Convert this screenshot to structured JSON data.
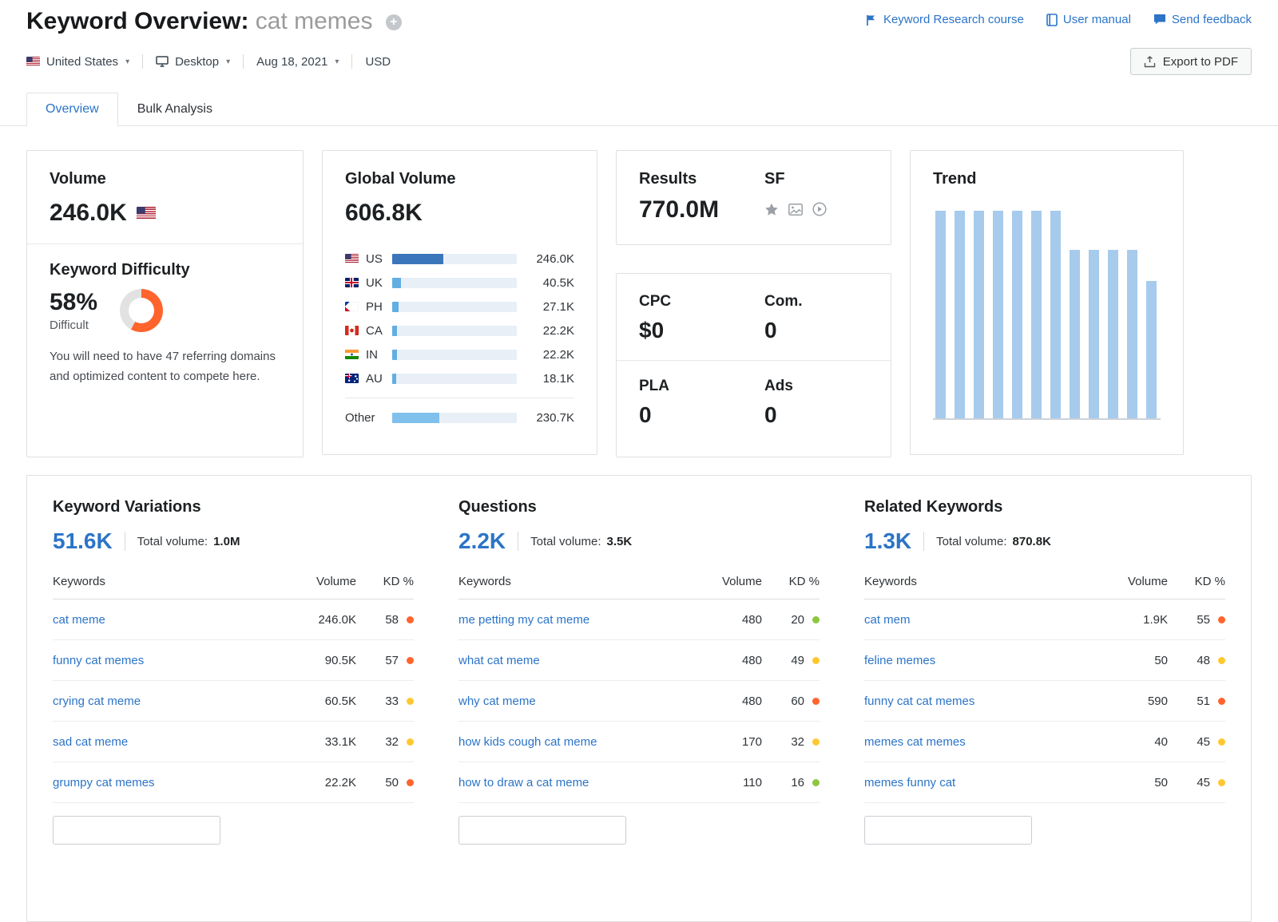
{
  "page_title": {
    "prefix": "Keyword Overview:",
    "keyword": "cat memes"
  },
  "header_links": {
    "course": "Keyword Research course",
    "manual": "User manual",
    "feedback": "Send feedback"
  },
  "export_button": "Export to PDF",
  "filters": {
    "country": "United States",
    "device": "Desktop",
    "date": "Aug 18, 2021",
    "currency": "USD"
  },
  "tabs": {
    "overview": "Overview",
    "bulk": "Bulk Analysis"
  },
  "volume_card": {
    "title": "Volume",
    "value": "246.0K",
    "kd_title": "Keyword Difficulty",
    "kd_percent": "58%",
    "kd_value": 58,
    "kd_label": "Difficult",
    "kd_note": "You will need to have 47 referring domains and optimized content to compete here."
  },
  "global_volume_card": {
    "title": "Global Volume",
    "value": "606.8K",
    "rows": [
      {
        "country": "US",
        "flag": "us",
        "value": "246.0K",
        "pct": 41,
        "fill": "bar_dark"
      },
      {
        "country": "UK",
        "flag": "uk",
        "value": "40.5K",
        "pct": 7,
        "fill": "bar_mid"
      },
      {
        "country": "PH",
        "flag": "ph",
        "value": "27.1K",
        "pct": 5,
        "fill": "bar_mid"
      },
      {
        "country": "CA",
        "flag": "ca",
        "value": "22.2K",
        "pct": 4,
        "fill": "bar_mid"
      },
      {
        "country": "IN",
        "flag": "in",
        "value": "22.2K",
        "pct": 4,
        "fill": "bar_mid"
      },
      {
        "country": "AU",
        "flag": "au",
        "value": "18.1K",
        "pct": 3,
        "fill": "bar_mid"
      },
      {
        "country": "Other",
        "flag": null,
        "value": "230.7K",
        "pct": 38,
        "fill": "bar_light",
        "divider_above": true
      }
    ]
  },
  "results_card": {
    "title": "Results",
    "value": "770.0M",
    "sf_title": "SF"
  },
  "cpc_card": {
    "cpc_label": "CPC",
    "cpc_value": "$0",
    "com_label": "Com.",
    "com_value": "0",
    "pla_label": "PLA",
    "pla_value": "0",
    "ads_label": "Ads",
    "ads_value": "0"
  },
  "trend_card": {
    "title": "Trend",
    "chart_data": {
      "type": "bar",
      "values": [
        100,
        100,
        100,
        100,
        100,
        100,
        100,
        81,
        81,
        81,
        81,
        66
      ],
      "ylim": [
        0,
        100
      ],
      "x_labels": [],
      "legend": "none",
      "note": "12 vertical bars, no axis tick labels visible"
    }
  },
  "kd_colors": {
    "green": "#8dc63f",
    "yellow": "#ffc831",
    "orange": "#ff642d"
  },
  "colors": {
    "bar_dark": "#3b76ba",
    "bar_mid": "#62aee3",
    "bar_light": "#7fc0ec",
    "accent_blue": "#2b74c8",
    "brand_orange": "#ff642d",
    "donut_rest": "#e2e2e2"
  },
  "tables": [
    {
      "title": "Keyword Variations",
      "count": "51.6K",
      "total_label": "Total volume:",
      "total_value": "1.0M",
      "headers": [
        "Keywords",
        "Volume",
        "KD %"
      ],
      "rows": [
        {
          "keyword": "cat meme",
          "volume": "246.0K",
          "kd": "58",
          "level": "orange"
        },
        {
          "keyword": "funny cat memes",
          "volume": "90.5K",
          "kd": "57",
          "level": "orange"
        },
        {
          "keyword": "crying cat meme",
          "volume": "60.5K",
          "kd": "33",
          "level": "yellow"
        },
        {
          "keyword": "sad cat meme",
          "volume": "33.1K",
          "kd": "32",
          "level": "yellow"
        },
        {
          "keyword": "grumpy cat memes",
          "volume": "22.2K",
          "kd": "50",
          "level": "orange"
        }
      ]
    },
    {
      "title": "Questions",
      "count": "2.2K",
      "total_label": "Total volume:",
      "total_value": "3.5K",
      "headers": [
        "Keywords",
        "Volume",
        "KD %"
      ],
      "rows": [
        {
          "keyword": "me petting my cat meme",
          "volume": "480",
          "kd": "20",
          "level": "green"
        },
        {
          "keyword": "what cat meme",
          "volume": "480",
          "kd": "49",
          "level": "yellow"
        },
        {
          "keyword": "why cat meme",
          "volume": "480",
          "kd": "60",
          "level": "orange"
        },
        {
          "keyword": "how kids cough cat meme",
          "volume": "170",
          "kd": "32",
          "level": "yellow"
        },
        {
          "keyword": "how to draw a cat meme",
          "volume": "110",
          "kd": "16",
          "level": "green"
        }
      ]
    },
    {
      "title": "Related Keywords",
      "count": "1.3K",
      "total_label": "Total volume:",
      "total_value": "870.8K",
      "headers": [
        "Keywords",
        "Volume",
        "KD %"
      ],
      "rows": [
        {
          "keyword": "cat mem",
          "volume": "1.9K",
          "kd": "55",
          "level": "orange"
        },
        {
          "keyword": "feline memes",
          "volume": "50",
          "kd": "48",
          "level": "yellow"
        },
        {
          "keyword": "funny cat cat memes",
          "volume": "590",
          "kd": "51",
          "level": "orange"
        },
        {
          "keyword": "memes cat memes",
          "volume": "40",
          "kd": "45",
          "level": "yellow"
        },
        {
          "keyword": "memes funny cat",
          "volume": "50",
          "kd": "45",
          "level": "yellow"
        }
      ]
    }
  ]
}
